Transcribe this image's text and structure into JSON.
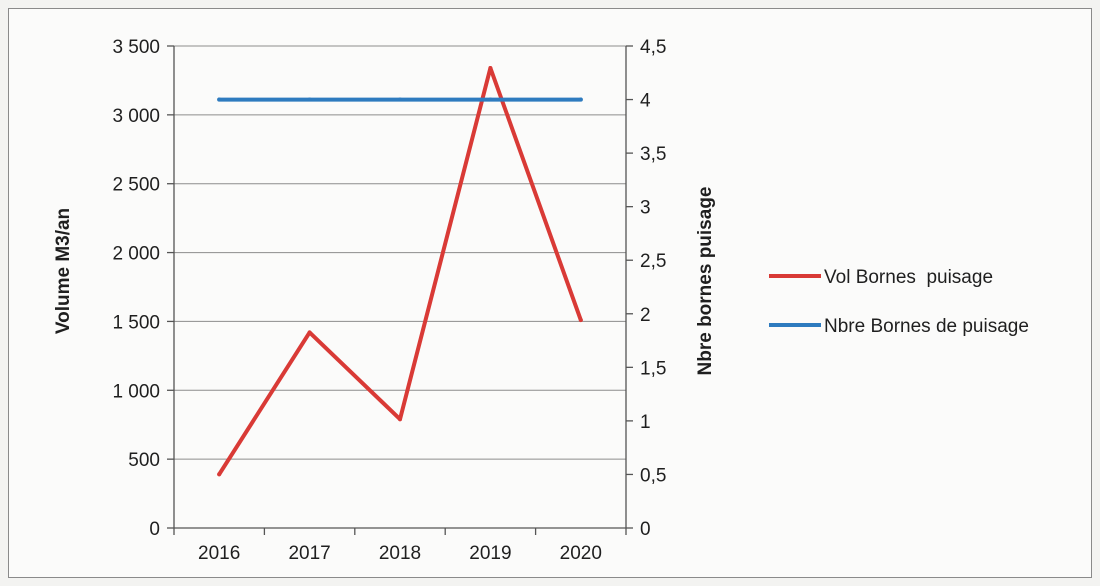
{
  "chart_data": {
    "type": "line",
    "title": "",
    "categories": [
      "2016",
      "2017",
      "2018",
      "2019",
      "2020"
    ],
    "y_left": {
      "label": "Volume M3/an",
      "ylim": [
        0,
        3500
      ],
      "ticks": [
        0,
        500,
        1000,
        1500,
        2000,
        2500,
        3000,
        3500
      ],
      "tick_labels": [
        "0",
        "500",
        "1 000",
        "1 500",
        "2 000",
        "2 500",
        "3 000",
        "3 500"
      ]
    },
    "y_right": {
      "label": "Nbre bornes puisage",
      "ylim": [
        0,
        4.5
      ],
      "ticks": [
        0,
        0.5,
        1,
        1.5,
        2,
        2.5,
        3,
        3.5,
        4,
        4.5
      ],
      "tick_labels": [
        "0",
        "0,5",
        "1",
        "1,5",
        "2",
        "2,5",
        "3",
        "3,5",
        "4",
        "4,5"
      ]
    },
    "series": [
      {
        "name": "Vol Bornes  puisage",
        "axis": "left",
        "color": "#d93a36",
        "values": [
          390,
          1420,
          790,
          3340,
          1510
        ]
      },
      {
        "name": "Nbre Bornes de puisage",
        "axis": "right",
        "color": "#2e7bbf",
        "values": [
          4,
          4,
          4,
          4,
          4
        ]
      }
    ],
    "grid": "horizontal",
    "legend_position": "right"
  }
}
